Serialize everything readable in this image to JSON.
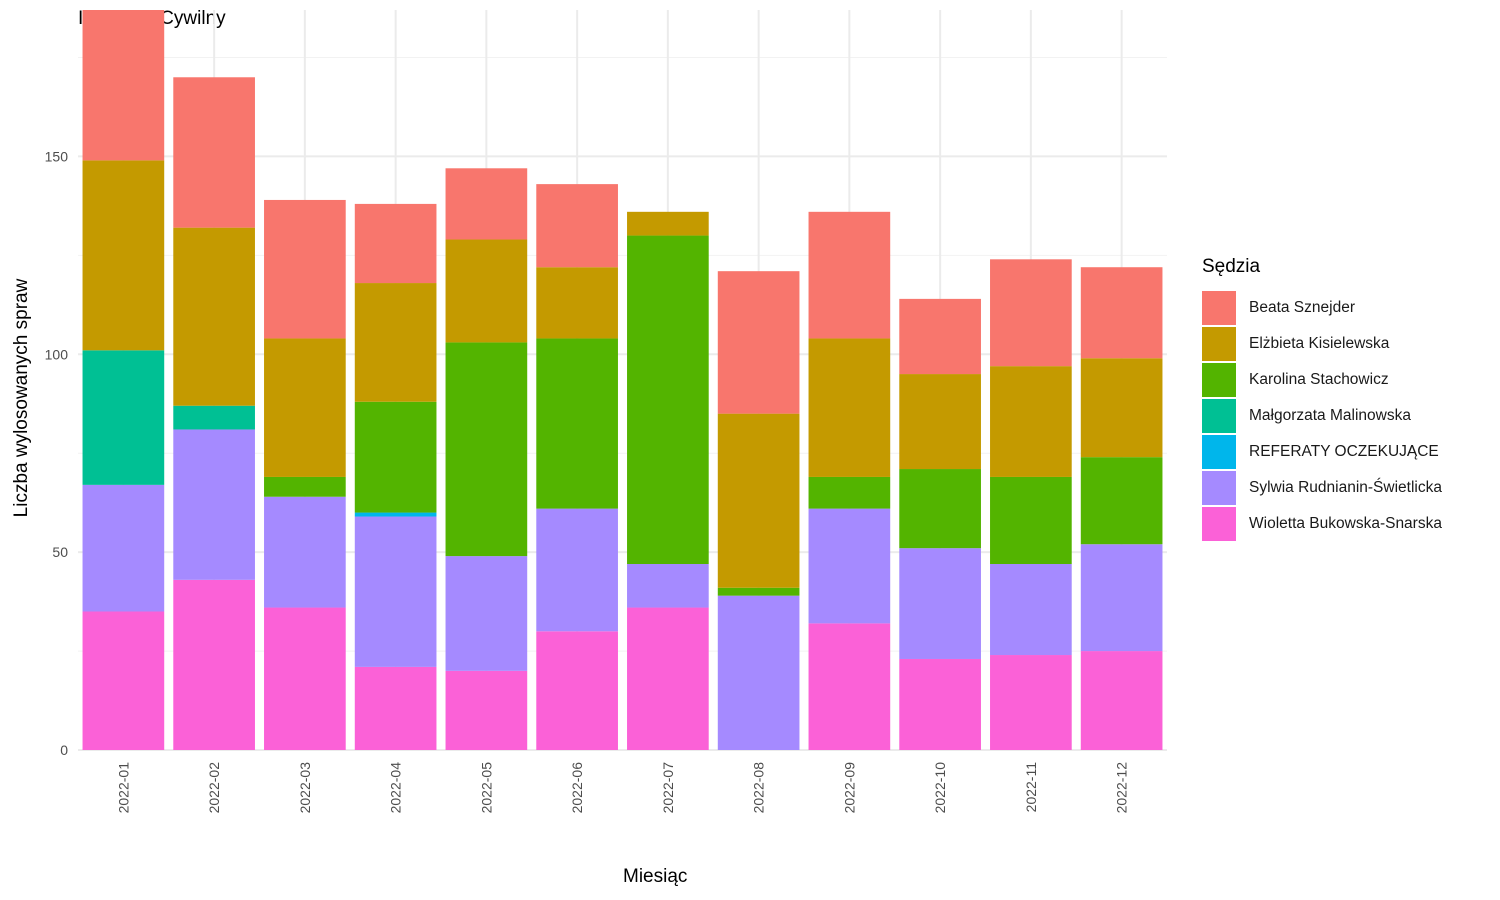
{
  "chart_data": {
    "type": "bar",
    "stacked": true,
    "title": "I Wydział Cywilny",
    "xlabel": "Miesiąc",
    "ylabel": "Liczba wylosowanych spraw",
    "ylim": [
      0,
      187
    ],
    "yticks": [
      0,
      50,
      100,
      150
    ],
    "grid": true,
    "legend_title": "Sędzia",
    "legend_position": "right",
    "categories": [
      "2022-01",
      "2022-02",
      "2022-03",
      "2022-04",
      "2022-05",
      "2022-06",
      "2022-07",
      "2022-08",
      "2022-09",
      "2022-10",
      "2022-11",
      "2022-12"
    ],
    "series": [
      {
        "name": "Beata Sznejder",
        "color": "#F8766D",
        "values": [
          38,
          38,
          35,
          20,
          18,
          21,
          0,
          36,
          32,
          19,
          27,
          23
        ]
      },
      {
        "name": "Elżbieta Kisielewska",
        "color": "#C49A00",
        "values": [
          48,
          45,
          35,
          30,
          26,
          18,
          6,
          44,
          35,
          24,
          28,
          25
        ]
      },
      {
        "name": "Karolina Stachowicz",
        "color": "#53B400",
        "values": [
          0,
          0,
          5,
          28,
          54,
          43,
          83,
          2,
          8,
          20,
          22,
          22
        ]
      },
      {
        "name": "Małgorzata Malinowska",
        "color": "#00C094",
        "values": [
          34,
          6,
          0,
          0,
          0,
          0,
          0,
          0,
          0,
          0,
          0,
          0
        ]
      },
      {
        "name": "REFERATY OCZEKUJĄCE",
        "color": "#00B6EB",
        "values": [
          0,
          0,
          0,
          1,
          0,
          0,
          0,
          0,
          0,
          0,
          0,
          0
        ]
      },
      {
        "name": "Sylwia Rudnianin-Świetlicka",
        "color": "#A58AFF",
        "values": [
          32,
          38,
          28,
          38,
          29,
          31,
          11,
          39,
          29,
          28,
          23,
          27
        ]
      },
      {
        "name": "Wioletta Bukowska-Snarska",
        "color": "#FB61D7",
        "values": [
          35,
          43,
          36,
          21,
          20,
          30,
          36,
          0,
          32,
          23,
          24,
          25
        ]
      }
    ]
  }
}
